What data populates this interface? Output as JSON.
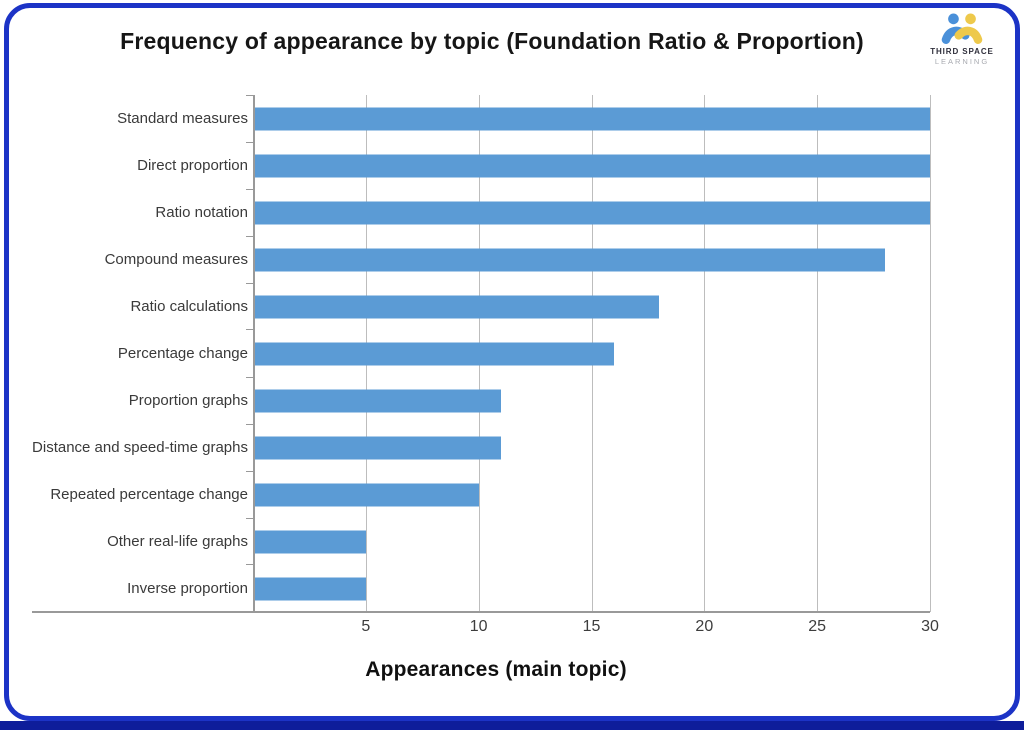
{
  "header": {
    "title": "Frequency of appearance by topic (Foundation Ratio & Proportion)",
    "logo": {
      "line1": "THIRD SPACE",
      "line2": "LEARNING",
      "blue": "#4a90d9",
      "yellow": "#eec94b"
    }
  },
  "chart_data": {
    "type": "bar",
    "orientation": "horizontal",
    "title": "Frequency of appearance by topic (Foundation Ratio & Proportion)",
    "xlabel": "Appearances (main topic)",
    "categories": [
      "Standard measures",
      "Direct proportion",
      "Ratio notation",
      "Compound measures",
      "Ratio calculations",
      "Percentage change",
      "Proportion graphs",
      "Distance and speed-time graphs",
      "Repeated percentage change",
      "Other real-life graphs",
      "Inverse proportion"
    ],
    "values": [
      30,
      30,
      30,
      28,
      18,
      16,
      11,
      11,
      10,
      5,
      5
    ],
    "xlim": [
      0,
      30
    ],
    "xticks": [
      5,
      10,
      15,
      20,
      25,
      30
    ],
    "grid": true,
    "legend": "none",
    "bar_color": "#5B9BD5",
    "gridline_color": "#bdbdbd",
    "axis_color": "#999999"
  },
  "frame": {
    "border_color": "#1c33c6",
    "bottom_band_color": "#0e1d9a",
    "background": "#ffffff"
  }
}
